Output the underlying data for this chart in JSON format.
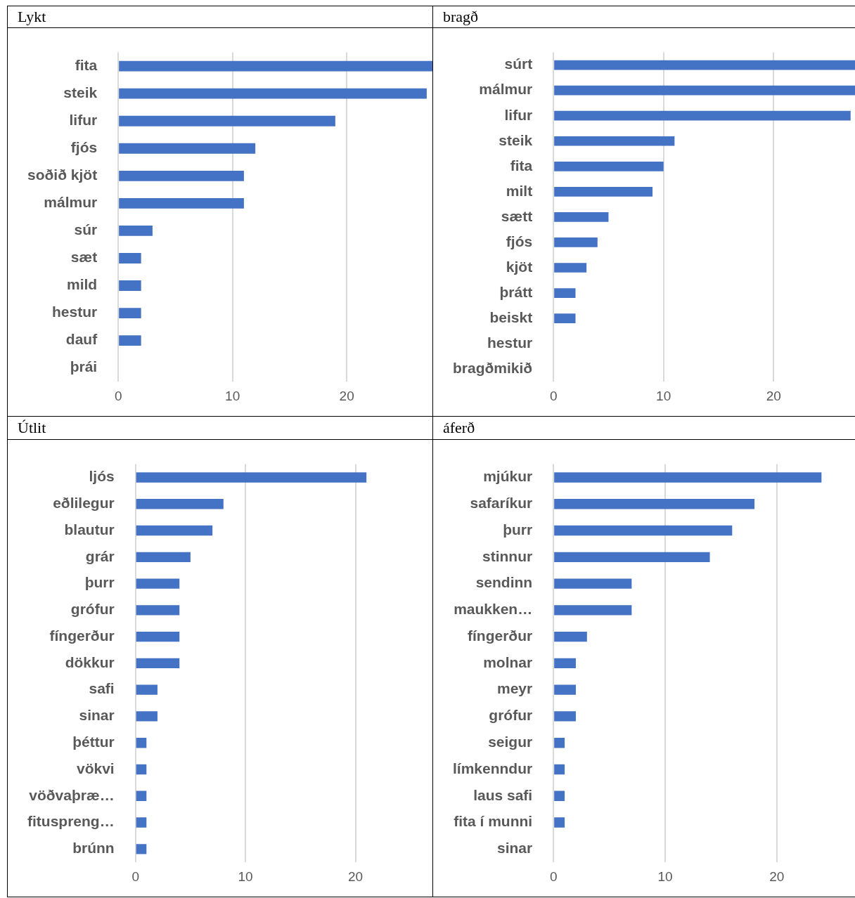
{
  "chart_data": [
    {
      "type": "bar",
      "orientation": "horizontal",
      "title": "Lykt",
      "categories": [
        "fita",
        "steik",
        "lifur",
        "fjós",
        "soðið kjöt",
        "málmur",
        "súr",
        "sæt",
        "mild",
        "hestur",
        "dauf",
        "þrái"
      ],
      "values": [
        27.5,
        27,
        19,
        12,
        11,
        11,
        3,
        2,
        2,
        2,
        2,
        0
      ],
      "color": "#4472c4",
      "xlim": [
        0,
        27.5
      ],
      "xticks": [
        0,
        10,
        20
      ],
      "grid": "x"
    },
    {
      "type": "bar",
      "orientation": "horizontal",
      "title": "bragð",
      "categories": [
        "súrt",
        "málmur",
        "lifur",
        "steik",
        "fita",
        "milt",
        "sætt",
        "fjós",
        "kjöt",
        "þrátt",
        "beiskt",
        "hestur",
        "bragðmikið"
      ],
      "values": [
        27.4,
        27.4,
        27,
        11,
        10,
        9,
        5,
        4,
        3,
        2,
        2,
        0,
        0
      ],
      "color": "#4472c4",
      "xlim": [
        0,
        27.4
      ],
      "xticks": [
        0,
        10,
        20
      ],
      "grid": "x"
    },
    {
      "type": "bar",
      "orientation": "horizontal",
      "title": "Útlit",
      "categories": [
        "ljós",
        "eðlilegur",
        "blautur",
        "grár",
        "þurr",
        "grófur",
        "fíngerður",
        "dökkur",
        "safi",
        "sinar",
        "þéttur",
        "vökvi",
        "vöðvaþræ…",
        "fituspreng…",
        "brúnn"
      ],
      "values": [
        21,
        8,
        7,
        5,
        4,
        4,
        4,
        4,
        2,
        2,
        1,
        1,
        1,
        1,
        1
      ],
      "color": "#4472c4",
      "xlim": [
        0,
        27
      ],
      "xticks": [
        0,
        10,
        20
      ],
      "grid": "x"
    },
    {
      "type": "bar",
      "orientation": "horizontal",
      "title": "áferð",
      "categories": [
        "mjúkur",
        "safaríkur",
        "þurr",
        "stinnur",
        "sendinn",
        "maukken…",
        "fíngerður",
        "molnar",
        "meyr",
        "grófur",
        "seigur",
        "límkenndur",
        "laus safi",
        "fita í munni",
        "sinar"
      ],
      "values": [
        24,
        18,
        16,
        14,
        7,
        7,
        3,
        2,
        2,
        2,
        1,
        1,
        1,
        1,
        0
      ],
      "color": "#4472c4",
      "xlim": [
        0,
        27
      ],
      "xticks": [
        0,
        10,
        20
      ],
      "grid": "x"
    }
  ]
}
